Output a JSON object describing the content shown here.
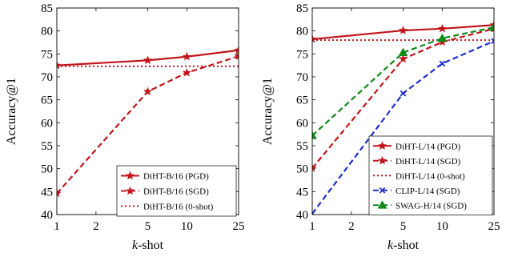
{
  "chart_data": [
    {
      "type": "line",
      "xlabel": "k-shot",
      "ylabel": "Accuracy@1",
      "xscale": "log",
      "xlim": [
        1,
        25
      ],
      "ylim": [
        40,
        85
      ],
      "xticks": [
        1,
        2,
        5,
        10,
        25
      ],
      "xtick_labels": [
        "1",
        "2",
        "5",
        "10",
        "25"
      ],
      "yticks": [
        40,
        45,
        50,
        55,
        60,
        65,
        70,
        75,
        80,
        85
      ],
      "ytick_labels": [
        "40",
        "45",
        "50",
        "55",
        "60",
        "65",
        "70",
        "75",
        "80",
        "85"
      ],
      "legend_position": "bottom-right",
      "series": [
        {
          "name": "DiHT-B/16 (PGD)",
          "x": [
            1,
            5,
            10,
            25
          ],
          "values": [
            72.5,
            73.6,
            74.4,
            75.8
          ],
          "color": "#c0161c",
          "dash": "solid",
          "marker": "star"
        },
        {
          "name": "DiHT-B/16 (SGD)",
          "x": [
            1,
            5,
            10,
            25
          ],
          "values": [
            44.6,
            66.8,
            70.9,
            74.5
          ],
          "color": "#c0161c",
          "dash": "dashed",
          "marker": "star"
        },
        {
          "name": "DiHT-B/16 (0-shot)",
          "x": [
            1,
            25
          ],
          "values": [
            72.3,
            72.3
          ],
          "color": "#c0161c",
          "dash": "dotted",
          "marker": "none"
        }
      ]
    },
    {
      "type": "line",
      "xlabel": "k-shot",
      "ylabel": "Accuracy@1",
      "xscale": "log",
      "xlim": [
        1,
        25
      ],
      "ylim": [
        40,
        85
      ],
      "xticks": [
        1,
        2,
        5,
        10,
        25
      ],
      "xtick_labels": [
        "1",
        "2",
        "5",
        "10",
        "25"
      ],
      "yticks": [
        40,
        45,
        50,
        55,
        60,
        65,
        70,
        75,
        80,
        85
      ],
      "ytick_labels": [
        "40",
        "45",
        "50",
        "55",
        "60",
        "65",
        "70",
        "75",
        "80",
        "85"
      ],
      "legend_position": "bottom-right",
      "series": [
        {
          "name": "DiHT-L/14 (PGD)",
          "x": [
            1,
            5,
            10,
            25
          ],
          "values": [
            78.2,
            80.1,
            80.5,
            81.3
          ],
          "color": "#c0161c",
          "dash": "solid",
          "marker": "star"
        },
        {
          "name": "DiHT-L/14 (SGD)",
          "x": [
            1,
            5,
            10,
            25
          ],
          "values": [
            50.1,
            73.9,
            77.6,
            80.5
          ],
          "color": "#c0161c",
          "dash": "dashed",
          "marker": "star"
        },
        {
          "name": "DiHT-L/14 (0-shot)",
          "x": [
            1,
            25
          ],
          "values": [
            78.0,
            78.0
          ],
          "color": "#c0161c",
          "dash": "dotted",
          "marker": "none"
        },
        {
          "name": "CLIP-L/14 (SGD)",
          "x": [
            1,
            5,
            10,
            25
          ],
          "values": [
            40.2,
            66.4,
            72.9,
            77.8
          ],
          "color": "#1f2fd0",
          "dash": "dashed",
          "marker": "x"
        },
        {
          "name": "SWAG-H/14 (SGD)",
          "x": [
            1,
            5,
            10,
            25
          ],
          "values": [
            57.2,
            75.3,
            78.4,
            80.8
          ],
          "color": "#0e8a16",
          "dash": "dashed",
          "marker": "triangle"
        }
      ]
    }
  ]
}
